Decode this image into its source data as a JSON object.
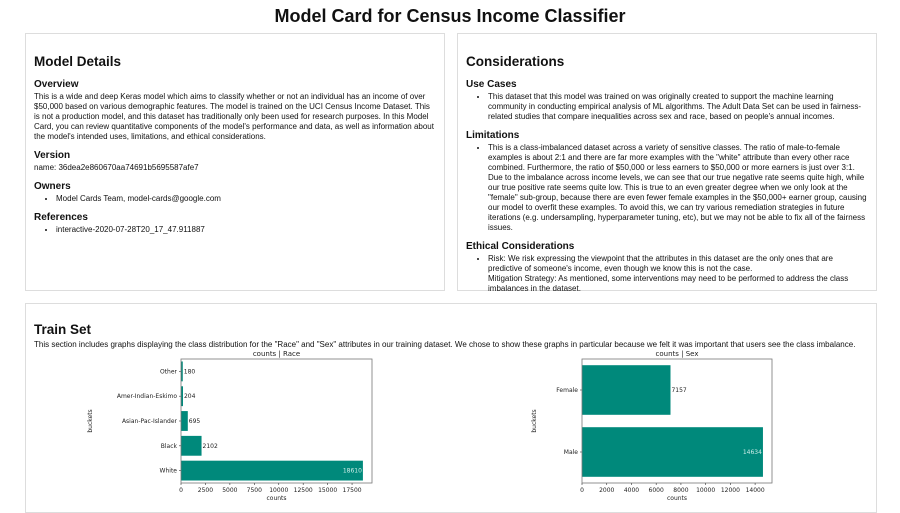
{
  "title": "Model Card for Census Income Classifier",
  "model_details": {
    "heading": "Model Details",
    "overview_heading": "Overview",
    "overview": "This is a wide and deep Keras model which aims to classify whether or not an individual has an income of over $50,000 based on various demographic features. The model is trained on the UCI Census Income Dataset. This is not a production model, and this dataset has traditionally only been used for research purposes. In this Model Card, you can review quantitative components of the model's performance and data, as well as information about the model's intended uses, limitations, and ethical considerations.",
    "version_heading": "Version",
    "version": "name: 36dea2e860670aa74691b5695587afe7",
    "owners_heading": "Owners",
    "owners": [
      "Model Cards Team, model-cards@google.com"
    ],
    "references_heading": "References",
    "references": [
      "interactive-2020-07-28T20_17_47.911887"
    ]
  },
  "considerations": {
    "heading": "Considerations",
    "use_cases_heading": "Use Cases",
    "use_cases": [
      "This dataset that this model was trained on was originally created to support the machine learning community in conducting empirical analysis of ML algorithms. The Adult Data Set can be used in fairness-related studies that compare inequalities across sex and race, based on people's annual incomes."
    ],
    "limitations_heading": "Limitations",
    "limitations": [
      "This is a class-imbalanced dataset across a variety of sensitive classes. The ratio of male-to-female examples is about 2:1 and there are far more examples with the \"white\" attribute than every other race combined. Furthermore, the ratio of $50,000 or less earners to $50,000 or more earners is just over 3:1. Due to the imbalance across income levels, we can see that our true negative rate seems quite high, while our true positive rate seems quite low. This is true to an even greater degree when we only look at the \"female\" sub-group, because there are even fewer female examples in the $50,000+ earner group, causing our model to overfit these examples. To avoid this, we can try various remediation strategies in future iterations (e.g. undersampling, hyperparameter tuning, etc), but we may not be able to fix all of the fairness issues."
    ],
    "ethical_heading": "Ethical Considerations",
    "ethical_risk": "Risk: We risk expressing the viewpoint that the attributes in this dataset are the only ones that are predictive of someone's income, even though we know this is not the case.",
    "ethical_mitigation": "Mitigation Strategy: As mentioned, some interventions may need to be performed to address the class imbalances in the dataset."
  },
  "train_set": {
    "heading": "Train Set",
    "description": "This section includes graphs displaying the class distribution for the \"Race\" and \"Sex\" attributes in our training dataset. We chose to show these graphs in particular because we felt it was important that users see the class imbalance."
  },
  "chart_data": [
    {
      "type": "bar",
      "orientation": "horizontal",
      "title": "counts | Race",
      "xlabel": "counts",
      "ylabel": "buckets",
      "categories": [
        "White",
        "Black",
        "Asian-Pac-Islander",
        "Amer-Indian-Eskimo",
        "Other"
      ],
      "values": [
        18610,
        2102,
        695,
        204,
        180
      ],
      "xlim": [
        0,
        19540
      ],
      "xticks": [
        0,
        2500,
        5000,
        7500,
        10000,
        12500,
        15000,
        17500
      ],
      "color": "#00897b",
      "grid": false
    },
    {
      "type": "bar",
      "orientation": "horizontal",
      "title": "counts | Sex",
      "xlabel": "counts",
      "ylabel": "buckets",
      "categories": [
        "Male",
        "Female"
      ],
      "values": [
        14634,
        7157
      ],
      "xlim": [
        0,
        15366
      ],
      "xticks": [
        0,
        2000,
        4000,
        6000,
        8000,
        10000,
        12000,
        14000
      ],
      "color": "#00897b",
      "grid": false
    }
  ]
}
